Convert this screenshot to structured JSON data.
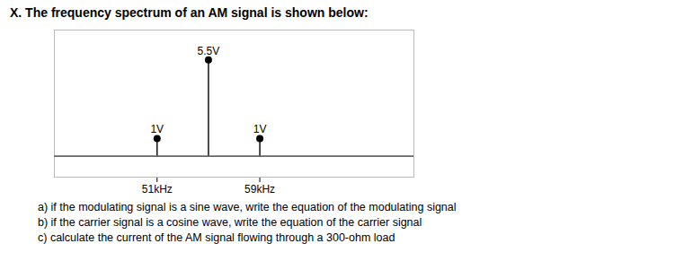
{
  "chart_data": {
    "type": "stem",
    "title": "X.   The frequency spectrum of an AM signal is shown below:",
    "x": [
      51,
      55,
      59
    ],
    "values": [
      1.0,
      5.5,
      1.0
    ],
    "value_labels": [
      "1V",
      "5.5V",
      "1V"
    ],
    "data_labels": true,
    "color": "#000000",
    "xlim": [
      43,
      71
    ],
    "ylim": [
      -1.2,
      7.2
    ],
    "xticks": [
      {
        "value": 51,
        "label": "51kHz"
      },
      {
        "value": 59,
        "label": "59kHz"
      }
    ],
    "tick_labels": "x",
    "grid": false,
    "annotations": [
      "a)   if the modulating signal is a sine wave, write the equation of the modulating signal",
      "b)   if the carrier signal is a cosine wave, write the equation of the carrier signal",
      "c)   calculate the current of the AM signal flowing through a 300-ohm load"
    ]
  }
}
